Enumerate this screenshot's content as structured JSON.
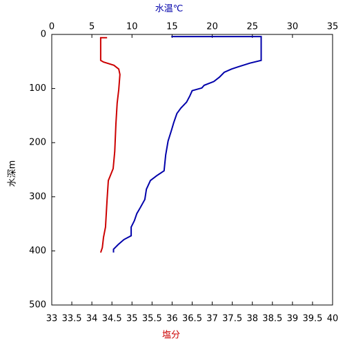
{
  "chart_data": {
    "type": "line",
    "x_label": "塩分",
    "x_label_color": "#cc0000",
    "x2_label": "水温℃",
    "x2_label_color": "#0000aa",
    "y_label": "水深m",
    "xlim": [
      33,
      40
    ],
    "xticks": [
      33,
      33.5,
      34,
      34.5,
      35,
      35.5,
      36,
      36.5,
      37,
      37.5,
      38,
      38.5,
      39,
      39.5,
      40
    ],
    "x2lim": [
      0,
      35
    ],
    "x2ticks": [
      0,
      5,
      10,
      15,
      20,
      25,
      30,
      35
    ],
    "ylim": [
      0,
      500
    ],
    "yticks": [
      0,
      100,
      200,
      300,
      400,
      500
    ],
    "y_inverted": true,
    "series": [
      {
        "color": "#0000aa",
        "axis": "x2",
        "x": [
          14.9,
          26.1,
          26.1,
          24.7,
          23.2,
          22.4,
          21.5,
          20.9,
          20.2,
          19.0,
          18.7,
          17.5,
          17.2,
          16.8,
          16.1,
          15.6,
          15.2,
          14.9,
          14.5,
          14.2,
          14.0,
          13.1,
          12.3,
          11.8,
          11.6,
          11.0,
          10.6,
          10.3,
          9.9,
          9.9,
          9.0,
          8.3,
          7.7,
          7.7
        ],
        "y": [
          4,
          4,
          48,
          53,
          60,
          64,
          70,
          79,
          87,
          94,
          99,
          104,
          114,
          125,
          136,
          146,
          163,
          178,
          197,
          223,
          252,
          261,
          270,
          286,
          305,
          321,
          331,
          344,
          356,
          372,
          379,
          388,
          397,
          403
        ]
      },
      {
        "color": "#cc0000",
        "axis": "x",
        "x": [
          34.38,
          34.22,
          34.22,
          34.29,
          34.55,
          34.67,
          34.7,
          34.67,
          34.63,
          34.6,
          34.57,
          34.53,
          34.46,
          34.41,
          34.38,
          34.34,
          34.29,
          34.26,
          34.22
        ],
        "y": [
          6,
          6,
          48,
          51,
          57,
          64,
          74,
          102,
          127,
          165,
          216,
          248,
          261,
          270,
          305,
          356,
          375,
          394,
          403
        ]
      }
    ]
  }
}
